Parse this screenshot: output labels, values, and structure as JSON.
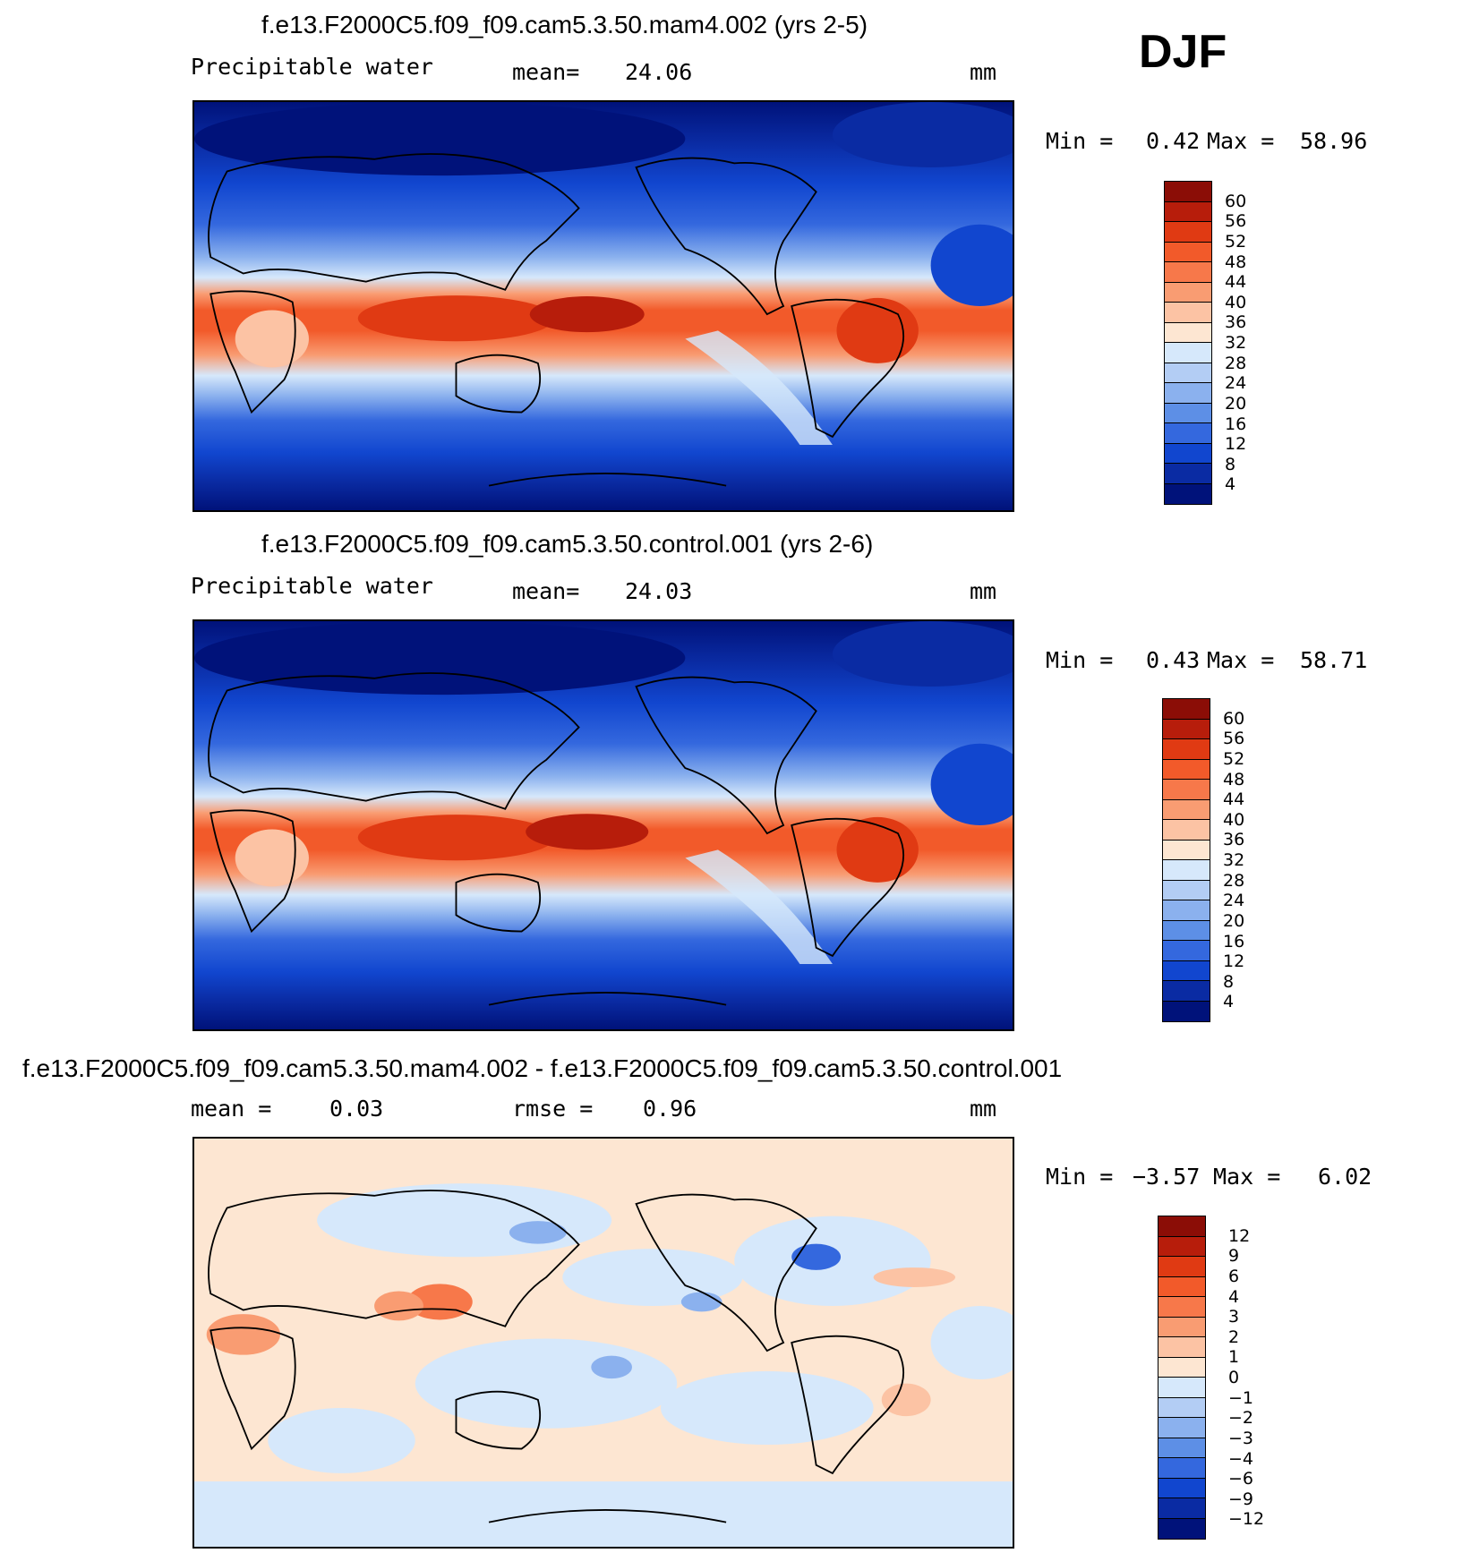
{
  "season": "DJF",
  "panels": [
    {
      "title": "f.e13.F2000C5.f09_f09.cam5.3.50.mam4.002 (yrs 2-5)",
      "variable": "Precipitable  water",
      "stat_label": "mean=",
      "stat_value": "24.06",
      "stat2_label": "",
      "stat2_value": "",
      "units": "mm",
      "min_label": "Min =",
      "min_value": "0.42",
      "max_label": "Max =",
      "max_value": "58.96",
      "colorbar": {
        "labels": [
          "60",
          "56",
          "52",
          "48",
          "44",
          "40",
          "36",
          "32",
          "28",
          "24",
          "20",
          "16",
          "12",
          "8",
          "4"
        ],
        "colors": [
          "#8b0d06",
          "#b71d0b",
          "#e03a13",
          "#f25a2a",
          "#f7784a",
          "#f99c72",
          "#fcc3a4",
          "#fde6d2",
          "#d6e8fb",
          "#b3cdf4",
          "#8bb1ee",
          "#5d8fe6",
          "#3468de",
          "#1146cf",
          "#0a2ba3",
          "#00127a"
        ]
      }
    },
    {
      "title": "f.e13.F2000C5.f09_f09.cam5.3.50.control.001 (yrs 2-6)",
      "variable": "Precipitable  water",
      "stat_label": "mean=",
      "stat_value": "24.03",
      "stat2_label": "",
      "stat2_value": "",
      "units": "mm",
      "min_label": "Min =",
      "min_value": "0.43",
      "max_label": "Max =",
      "max_value": "58.71",
      "colorbar": {
        "labels": [
          "60",
          "56",
          "52",
          "48",
          "44",
          "40",
          "36",
          "32",
          "28",
          "24",
          "20",
          "16",
          "12",
          "8",
          "4"
        ],
        "colors": [
          "#8b0d06",
          "#b71d0b",
          "#e03a13",
          "#f25a2a",
          "#f7784a",
          "#f99c72",
          "#fcc3a4",
          "#fde6d2",
          "#d6e8fb",
          "#b3cdf4",
          "#8bb1ee",
          "#5d8fe6",
          "#3468de",
          "#1146cf",
          "#0a2ba3",
          "#00127a"
        ]
      }
    },
    {
      "title": "f.e13.F2000C5.f09_f09.cam5.3.50.mam4.002 - f.e13.F2000C5.f09_f09.cam5.3.50.control.001",
      "variable": "",
      "stat_label": "mean =",
      "stat_value": "0.03",
      "stat2_label": "rmse =",
      "stat2_value": "0.96",
      "units": "mm",
      "min_label": "Min =",
      "min_value": "−3.57",
      "max_label": "Max =",
      "max_value": "6.02",
      "colorbar": {
        "labels": [
          "12",
          "9",
          "6",
          "4",
          "3",
          "2",
          "1",
          "0",
          "−1",
          "−2",
          "−3",
          "−4",
          "−6",
          "−9",
          "−12"
        ],
        "colors": [
          "#8b0d06",
          "#b71d0b",
          "#e03a13",
          "#f25a2a",
          "#f7784a",
          "#f99c72",
          "#fcc3a4",
          "#fde6d2",
          "#d6e8fb",
          "#b3cdf4",
          "#8bb1ee",
          "#5d8fe6",
          "#3468de",
          "#1146cf",
          "#0a2ba3",
          "#00127a"
        ]
      }
    }
  ]
}
